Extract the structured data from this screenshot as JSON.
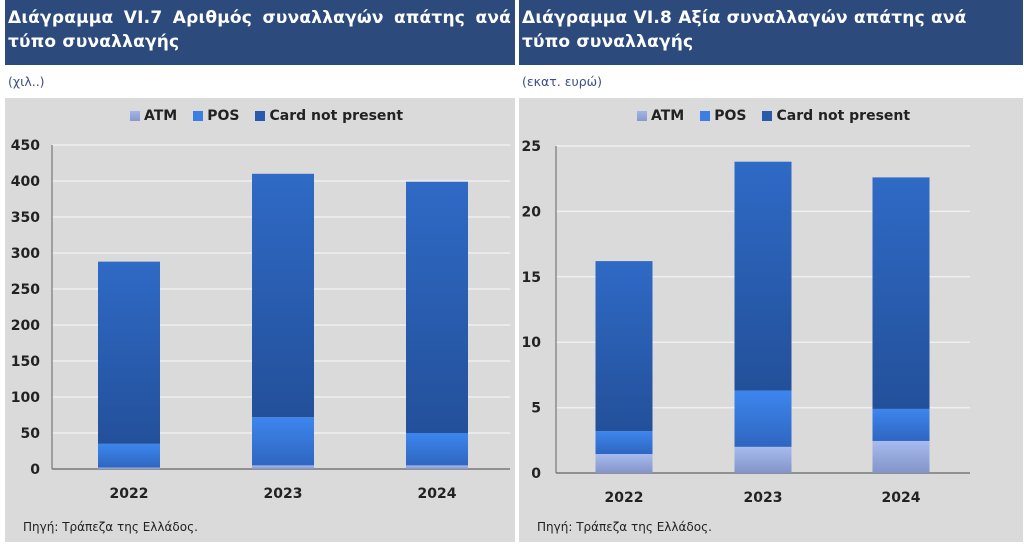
{
  "panels": [
    {
      "title": "Διάγραμμα VI.7 Αριθμός συναλλαγών απάτης ανά τύπο συναλλαγής",
      "unit": "(χιλ..)",
      "source": "Πηγή: Τράπεζα της Ελλάδος."
    },
    {
      "title": "Διάγραμμα VI.8 Αξία συναλλαγών απάτης ανά τύπο συναλλαγής",
      "unit": "(εκατ. ευρώ)",
      "source": "Πηγή: Τράπεζα της Ελλάδος."
    }
  ],
  "colors": {
    "header_bg": "#2c4a7c",
    "ATM": "#a3b5e8",
    "POS": "#3b7fe3",
    "Card not present": "#2a5aab",
    "plot_bg": "#dadada"
  },
  "chart_data": [
    {
      "type": "bar",
      "stacked": true,
      "title": "Διάγραμμα VI.7 Αριθμός συναλλαγών απάτης ανά τύπο συναλλαγής",
      "ylabel": "(χιλ..)",
      "xlabel": "",
      "categories": [
        "2022",
        "2023",
        "2024"
      ],
      "series": [
        {
          "name": "ATM",
          "values": [
            2,
            5,
            5
          ]
        },
        {
          "name": "POS",
          "values": [
            33,
            67,
            45
          ]
        },
        {
          "name": "Card not present",
          "values": [
            253,
            338,
            349
          ]
        }
      ],
      "ylim": [
        0,
        450
      ],
      "yticks": [
        0,
        50,
        100,
        150,
        200,
        250,
        300,
        350,
        400,
        450
      ],
      "grid": true,
      "legend": "top-center"
    },
    {
      "type": "bar",
      "stacked": true,
      "title": "Διάγραμμα VI.8 Αξία συναλλαγών απάτης ανά τύπο συναλλαγής",
      "ylabel": "(εκατ. ευρώ)",
      "xlabel": "",
      "categories": [
        "2022",
        "2023",
        "2024"
      ],
      "series": [
        {
          "name": "ATM",
          "values": [
            1.45,
            2.0,
            2.45
          ]
        },
        {
          "name": "POS",
          "values": [
            1.75,
            4.3,
            2.45
          ]
        },
        {
          "name": "Card not present",
          "values": [
            13.0,
            17.5,
            17.7
          ]
        }
      ],
      "ylim": [
        0,
        25
      ],
      "yticks": [
        0,
        5,
        10,
        15,
        20,
        25
      ],
      "grid": true,
      "legend": "top-center"
    }
  ]
}
